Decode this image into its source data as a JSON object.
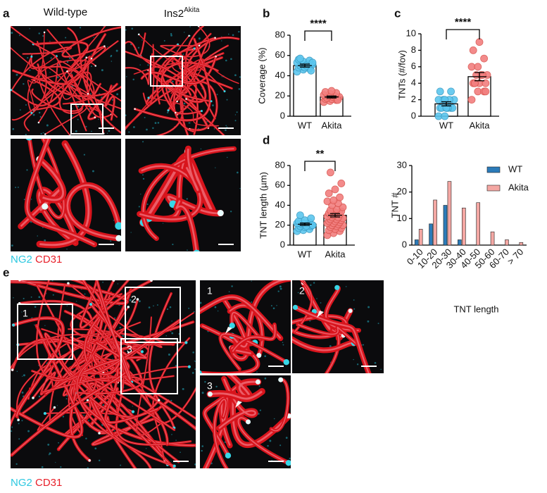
{
  "panel_a": {
    "label": "a",
    "wild_type": "Wild-type",
    "ins2": "Ins2",
    "akita_sup": "Akita",
    "stain_ng2": "NG2",
    "stain_cd31": "CD31"
  },
  "panel_e": {
    "label": "e",
    "insets": [
      "1",
      "2",
      "3"
    ],
    "stain_ng2": "NG2",
    "stain_cd31": "CD31"
  },
  "chart_data": [
    {
      "type": "dotbar",
      "panel_label": "b",
      "ylabel": "Coverage (%)",
      "annotation": "****",
      "categories": [
        "WT",
        "Akita"
      ],
      "values": [
        50,
        19
      ],
      "errors": [
        1.5,
        1
      ],
      "points": [
        [
          44,
          46,
          47,
          48,
          49,
          50,
          50,
          51,
          51,
          52,
          52,
          53,
          54,
          55,
          56,
          48,
          45,
          57,
          50,
          53
        ],
        [
          14,
          15,
          16,
          17,
          17,
          18,
          18,
          19,
          19,
          20,
          20,
          21,
          22,
          23,
          24,
          25,
          16
        ]
      ],
      "colors": [
        "#5cc6ee",
        "#f27f7f"
      ],
      "ylim": [
        0,
        80
      ],
      "yticks": [
        0,
        20,
        40,
        60,
        80
      ]
    },
    {
      "type": "dotbar",
      "panel_label": "c",
      "ylabel": "TNTs (#/fov)",
      "annotation": "****",
      "categories": [
        "WT",
        "Akita"
      ],
      "values": [
        1.5,
        4.8
      ],
      "errors": [
        0.25,
        0.5
      ],
      "points": [
        [
          0,
          0,
          1,
          1,
          1,
          1,
          1,
          1,
          2,
          2,
          2,
          2,
          2,
          3,
          3,
          1
        ],
        [
          2,
          3,
          3,
          4,
          4,
          4,
          4,
          5,
          5,
          5,
          5,
          6,
          6,
          7,
          8,
          9,
          3,
          4
        ]
      ],
      "colors": [
        "#5cc6ee",
        "#f27f7f"
      ],
      "ylim": [
        0,
        10
      ],
      "yticks": [
        0,
        2,
        4,
        6,
        8,
        10
      ]
    },
    {
      "type": "dotbar",
      "panel_label": "d",
      "ylabel": "TNT length (µm)",
      "annotation": "**",
      "categories": [
        "WT",
        "Akita"
      ],
      "values": [
        21,
        30
      ],
      "errors": [
        1.2,
        1.7
      ],
      "points": [
        [
          14,
          15,
          16,
          17,
          18,
          19,
          19,
          20,
          20,
          21,
          21,
          22,
          22,
          23,
          24,
          25,
          27,
          30,
          19,
          20
        ],
        [
          10,
          12,
          14,
          15,
          16,
          17,
          18,
          19,
          20,
          20,
          21,
          22,
          22,
          23,
          24,
          24,
          25,
          26,
          26,
          27,
          28,
          28,
          29,
          30,
          31,
          32,
          33,
          34,
          35,
          36,
          38,
          40,
          42,
          44,
          45,
          48,
          52,
          56,
          62,
          73
        ]
      ],
      "colors": [
        "#5cc6ee",
        "#f27f7f"
      ],
      "ylim": [
        0,
        80
      ],
      "yticks": [
        0,
        20,
        40,
        60,
        80
      ]
    },
    {
      "type": "bar",
      "ylabel": "TNT #",
      "xlabel": "TNT length",
      "categories": [
        "0-10",
        "10-20",
        "20-30",
        "30-40",
        "40-50",
        "50-60",
        "60-70",
        "> 70"
      ],
      "series": [
        {
          "name": "WT",
          "color": "#2b7bb9",
          "values": [
            2,
            8,
            15,
            2,
            0,
            0,
            0,
            0
          ]
        },
        {
          "name": "Akita",
          "color": "#f4a7a3",
          "values": [
            6,
            17,
            24,
            14,
            16,
            5,
            2,
            1
          ]
        }
      ],
      "ylim": [
        0,
        30
      ],
      "yticks": [
        0,
        10,
        20,
        30
      ],
      "legend": "top-right"
    }
  ]
}
